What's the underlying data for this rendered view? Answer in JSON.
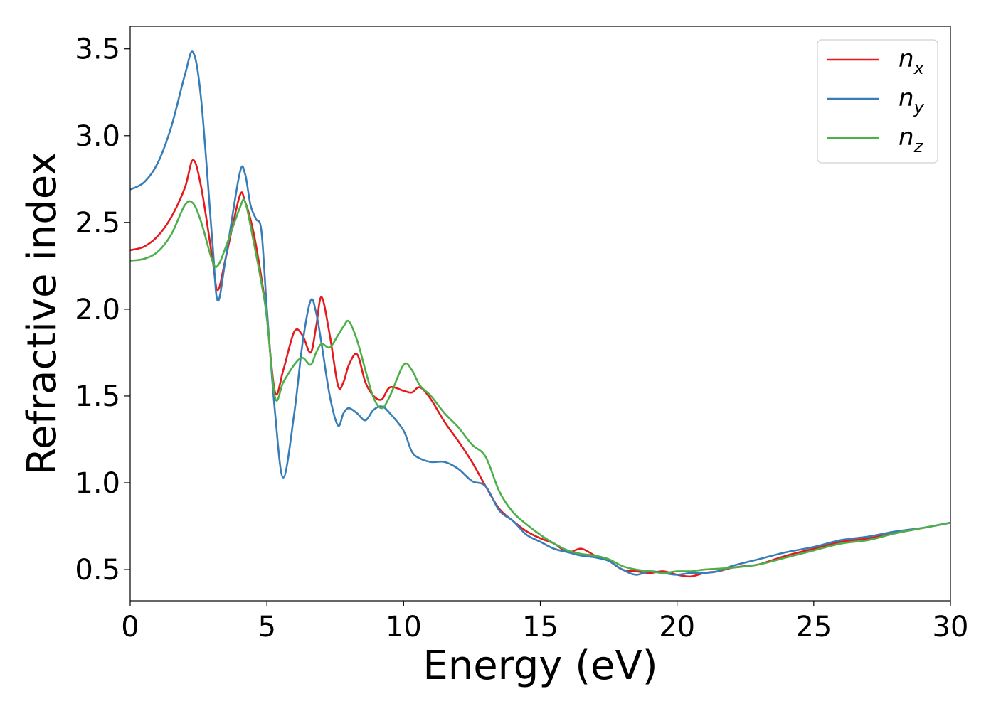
{
  "chart_data": {
    "type": "line",
    "title": "",
    "xlabel": "Energy (eV)",
    "ylabel": "Refractive index",
    "xlim": [
      0,
      30
    ],
    "ylim": [
      0.32,
      3.63
    ],
    "xticks": [
      0,
      5,
      10,
      15,
      20,
      25,
      30
    ],
    "xtick_labels": [
      "0",
      "5",
      "10",
      "15",
      "20",
      "25",
      "30"
    ],
    "yticks": [
      0.5,
      1.0,
      1.5,
      2.0,
      2.5,
      3.0,
      3.5
    ],
    "ytick_labels": [
      "0.5",
      "1.0",
      "1.5",
      "2.0",
      "2.5",
      "3.0",
      "3.5"
    ],
    "grid": false,
    "legend_position": "top-right",
    "series": [
      {
        "name": "n_x",
        "label_main": "n",
        "label_sub": "x",
        "color": "#e41a1c",
        "x": [
          0,
          0.5,
          1.0,
          1.5,
          2.0,
          2.3,
          2.6,
          3.0,
          3.2,
          3.5,
          4.0,
          4.2,
          4.5,
          4.8,
          5.0,
          5.3,
          5.6,
          6.0,
          6.3,
          6.6,
          6.8,
          7.0,
          7.3,
          7.6,
          7.8,
          8.0,
          8.3,
          8.6,
          8.9,
          9.2,
          9.5,
          10.0,
          10.3,
          10.6,
          11.0,
          11.5,
          12.0,
          12.5,
          13.0,
          13.5,
          14.0,
          14.5,
          15.0,
          15.5,
          16.0,
          16.5,
          17.0,
          17.5,
          18.0,
          18.5,
          19.0,
          19.5,
          20.0,
          20.5,
          21.0,
          21.5,
          22.0,
          22.5,
          23.0,
          24.0,
          25.0,
          26.0,
          27.0,
          28.0,
          29.0,
          30.0
        ],
        "y": [
          2.34,
          2.36,
          2.42,
          2.53,
          2.7,
          2.86,
          2.7,
          2.3,
          2.11,
          2.3,
          2.65,
          2.62,
          2.45,
          2.18,
          1.95,
          1.52,
          1.65,
          1.87,
          1.85,
          1.75,
          1.9,
          2.07,
          1.85,
          1.56,
          1.58,
          1.68,
          1.74,
          1.58,
          1.5,
          1.48,
          1.55,
          1.53,
          1.52,
          1.55,
          1.48,
          1.35,
          1.24,
          1.12,
          0.98,
          0.85,
          0.78,
          0.72,
          0.68,
          0.65,
          0.6,
          0.62,
          0.58,
          0.55,
          0.5,
          0.49,
          0.48,
          0.49,
          0.47,
          0.46,
          0.48,
          0.49,
          0.51,
          0.52,
          0.53,
          0.58,
          0.62,
          0.66,
          0.68,
          0.71,
          0.74,
          0.77
        ]
      },
      {
        "name": "n_y",
        "label_main": "n",
        "label_sub": "y",
        "color": "#377eb8",
        "x": [
          0,
          0.5,
          1.0,
          1.5,
          2.0,
          2.3,
          2.6,
          3.0,
          3.2,
          3.5,
          4.0,
          4.2,
          4.4,
          4.6,
          4.8,
          5.0,
          5.3,
          5.6,
          6.0,
          6.3,
          6.6,
          6.8,
          7.0,
          7.3,
          7.6,
          7.8,
          8.0,
          8.3,
          8.6,
          8.9,
          9.2,
          9.5,
          10.0,
          10.3,
          10.6,
          11.0,
          11.5,
          12.0,
          12.5,
          13.0,
          13.5,
          14.0,
          14.5,
          15.0,
          15.5,
          16.0,
          16.5,
          17.0,
          17.5,
          18.0,
          18.5,
          19.0,
          19.5,
          20.0,
          20.5,
          21.0,
          21.5,
          22.0,
          23.0,
          24.0,
          25.0,
          26.0,
          27.0,
          28.0,
          29.0,
          30.0
        ],
        "y": [
          2.69,
          2.73,
          2.84,
          3.05,
          3.35,
          3.48,
          3.2,
          2.4,
          2.05,
          2.3,
          2.78,
          2.78,
          2.6,
          2.52,
          2.45,
          2.0,
          1.4,
          1.03,
          1.4,
          1.8,
          2.05,
          1.98,
          1.8,
          1.5,
          1.33,
          1.4,
          1.43,
          1.4,
          1.36,
          1.42,
          1.44,
          1.4,
          1.3,
          1.18,
          1.14,
          1.12,
          1.12,
          1.08,
          1.01,
          0.98,
          0.84,
          0.78,
          0.7,
          0.66,
          0.62,
          0.6,
          0.58,
          0.57,
          0.55,
          0.5,
          0.47,
          0.49,
          0.48,
          0.47,
          0.48,
          0.48,
          0.49,
          0.52,
          0.56,
          0.6,
          0.63,
          0.67,
          0.69,
          0.72,
          0.74,
          0.77
        ]
      },
      {
        "name": "n_z",
        "label_main": "n",
        "label_sub": "z",
        "color": "#4daf4a",
        "x": [
          0,
          0.5,
          1.0,
          1.5,
          2.0,
          2.3,
          2.6,
          3.0,
          3.2,
          3.5,
          4.0,
          4.2,
          4.5,
          4.8,
          5.0,
          5.3,
          5.6,
          6.0,
          6.3,
          6.6,
          6.8,
          7.0,
          7.3,
          7.6,
          7.8,
          8.0,
          8.3,
          8.6,
          8.9,
          9.2,
          9.5,
          10.0,
          10.3,
          10.6,
          11.0,
          11.5,
          12.0,
          12.5,
          13.0,
          13.5,
          14.0,
          14.5,
          15.0,
          15.5,
          16.0,
          16.5,
          17.0,
          17.5,
          18.0,
          18.5,
          19.0,
          19.5,
          20.0,
          20.5,
          21.0,
          22.0,
          23.0,
          24.0,
          25.0,
          26.0,
          27.0,
          28.0,
          29.0,
          30.0
        ],
        "y": [
          2.28,
          2.29,
          2.33,
          2.43,
          2.6,
          2.61,
          2.5,
          2.28,
          2.25,
          2.36,
          2.58,
          2.62,
          2.4,
          2.15,
          1.95,
          1.49,
          1.58,
          1.68,
          1.72,
          1.68,
          1.75,
          1.8,
          1.78,
          1.85,
          1.9,
          1.93,
          1.82,
          1.65,
          1.49,
          1.43,
          1.5,
          1.68,
          1.65,
          1.56,
          1.5,
          1.4,
          1.32,
          1.22,
          1.15,
          0.95,
          0.83,
          0.76,
          0.7,
          0.65,
          0.61,
          0.59,
          0.58,
          0.56,
          0.52,
          0.5,
          0.49,
          0.48,
          0.49,
          0.49,
          0.5,
          0.51,
          0.53,
          0.57,
          0.61,
          0.65,
          0.67,
          0.71,
          0.74,
          0.77
        ]
      }
    ]
  }
}
